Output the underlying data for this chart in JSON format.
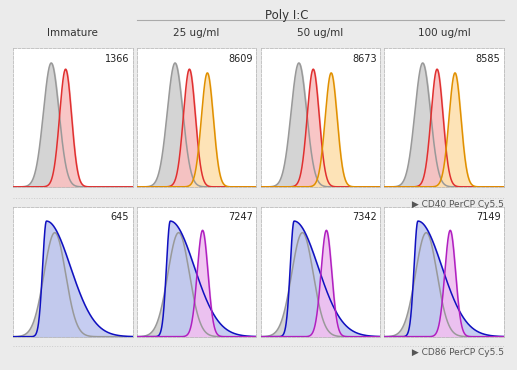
{
  "title_top": "Poly I:C",
  "col_labels": [
    "Immature",
    "25 ug/ml",
    "50 ug/ml",
    "100 ug/ml"
  ],
  "row1_numbers": [
    "1366",
    "8609",
    "8673",
    "8585"
  ],
  "row2_numbers": [
    "645",
    "7247",
    "7342",
    "7149"
  ],
  "axis_label_row1": "CD40 PerCP Cy5.5",
  "axis_label_row2": "CD86 PerCP Cy5.5",
  "gray_fill": "#d0d0d0",
  "gray_edge": "#999999",
  "red_fill": "#f8c0c0",
  "red_edge": "#e03030",
  "orange_fill": "#fde0b0",
  "orange_edge": "#e09000",
  "blue_fill": "#c0c8f0",
  "blue_edge": "#1010c0",
  "purple_fill": "#f0c0f0",
  "purple_edge": "#b020c0",
  "box_border_color": "#bbbbbb",
  "overall_bg": "#ebebeb",
  "text_color": "#333333",
  "axis_text_color": "#555555"
}
